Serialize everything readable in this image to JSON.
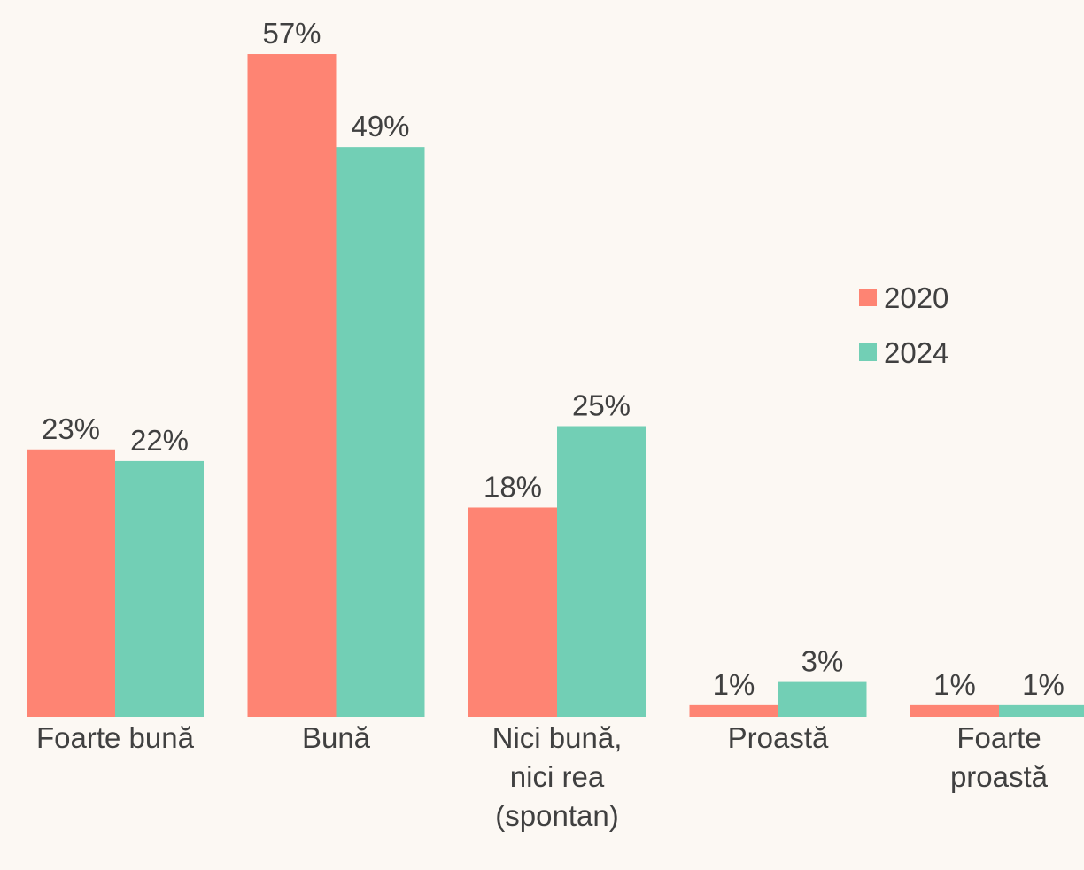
{
  "chart_data": {
    "type": "bar",
    "categories": [
      "Foarte bună",
      "Bună",
      "Nici bună, nici rea (spontan)",
      "Proastă",
      "Foarte proastă"
    ],
    "series": [
      {
        "name": "2020",
        "color": "#fe8473",
        "values": [
          23,
          57,
          18,
          1,
          1
        ],
        "value_labels": [
          "23%",
          "57%",
          "18%",
          "1%",
          "1%"
        ]
      },
      {
        "name": "2024",
        "color": "#72cfb5",
        "values": [
          22,
          49,
          25,
          3,
          1
        ],
        "value_labels": [
          "22%",
          "49%",
          "25%",
          "3%",
          "1%"
        ]
      }
    ],
    "legend": "right"
  }
}
